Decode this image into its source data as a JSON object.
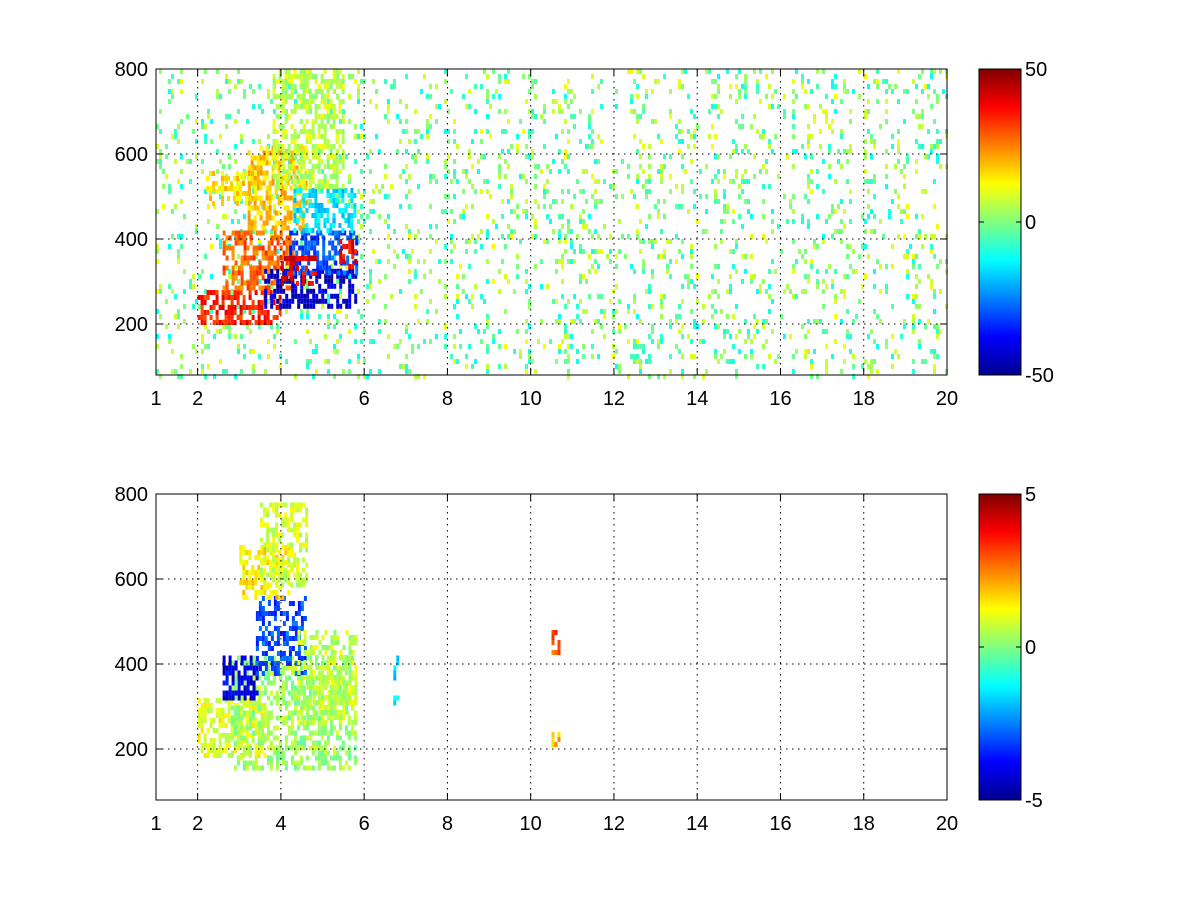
{
  "chart_data": [
    {
      "type": "heatmap",
      "title": "",
      "xlabel": "",
      "ylabel": "",
      "xlim": [
        1,
        20
      ],
      "ylim": [
        80,
        800
      ],
      "xticks": [
        1,
        2,
        4,
        6,
        8,
        10,
        12,
        14,
        16,
        18,
        20
      ],
      "yticks": [
        200,
        400,
        600,
        800
      ],
      "grid": true,
      "colormap": "jet",
      "clim": [
        -50,
        50
      ],
      "colorbar_ticks": [
        50,
        0,
        -50
      ],
      "colorbar_labels": [
        "50",
        "0",
        "-50"
      ],
      "clusters": [
        {
          "x": [
            2.0,
            4.0
          ],
          "y": [
            200,
            280
          ],
          "value": 35
        },
        {
          "x": [
            2.6,
            4.3
          ],
          "y": [
            280,
            420
          ],
          "value": 28
        },
        {
          "x": [
            3.2,
            4.6
          ],
          "y": [
            420,
            620
          ],
          "value": 18
        },
        {
          "x": [
            2.2,
            3.4
          ],
          "y": [
            480,
            560
          ],
          "value": 15
        },
        {
          "x": [
            3.6,
            5.8
          ],
          "y": [
            240,
            330
          ],
          "value": -42
        },
        {
          "x": [
            4.2,
            5.8
          ],
          "y": [
            320,
            420
          ],
          "value": -30
        },
        {
          "x": [
            4.3,
            5.8
          ],
          "y": [
            420,
            520
          ],
          "value": -15
        },
        {
          "x": [
            4.0,
            4.8
          ],
          "y": [
            300,
            360
          ],
          "value": 40
        },
        {
          "x": [
            5.4,
            5.8
          ],
          "y": [
            330,
            400
          ],
          "value": 38
        },
        {
          "x": [
            3.8,
            5.5
          ],
          "y": [
            520,
            800
          ],
          "value": 6
        }
      ],
      "background_value_range": [
        -12,
        12
      ],
      "background_density": 0.12
    },
    {
      "type": "heatmap",
      "title": "",
      "xlabel": "",
      "ylabel": "",
      "xlim": [
        1,
        20
      ],
      "ylim": [
        80,
        800
      ],
      "xticks": [
        1,
        2,
        4,
        6,
        8,
        10,
        12,
        14,
        16,
        18,
        20
      ],
      "yticks": [
        200,
        400,
        600,
        800
      ],
      "grid": true,
      "colormap": "jet",
      "clim": [
        -5,
        5
      ],
      "colorbar_ticks": [
        5,
        0,
        -5
      ],
      "colorbar_labels": [
        "5",
        "0",
        "-5"
      ],
      "clusters": [
        {
          "x": [
            2.0,
            3.6
          ],
          "y": [
            180,
            320
          ],
          "value": 1.0
        },
        {
          "x": [
            2.8,
            5.8
          ],
          "y": [
            160,
            420
          ],
          "value": 0.3
        },
        {
          "x": [
            2.6,
            3.4
          ],
          "y": [
            320,
            420
          ],
          "value": -4.0
        },
        {
          "x": [
            3.4,
            4.6
          ],
          "y": [
            380,
            560
          ],
          "value": -3.0
        },
        {
          "x": [
            4.4,
            5.8
          ],
          "y": [
            260,
            480
          ],
          "value": 0.6
        },
        {
          "x": [
            3.0,
            4.2
          ],
          "y": [
            560,
            680
          ],
          "value": 1.5
        },
        {
          "x": [
            3.5,
            4.6
          ],
          "y": [
            580,
            780
          ],
          "value": 0.8
        },
        {
          "x": [
            10.5,
            10.7
          ],
          "y": [
            430,
            480
          ],
          "value": 3.0
        },
        {
          "x": [
            10.5,
            10.7
          ],
          "y": [
            210,
            240
          ],
          "value": 2.0
        },
        {
          "x": [
            6.7,
            6.8
          ],
          "y": [
            300,
            420
          ],
          "value": -1.5
        }
      ],
      "background_value_range": [
        -1,
        1
      ],
      "background_density": 0.0
    }
  ]
}
